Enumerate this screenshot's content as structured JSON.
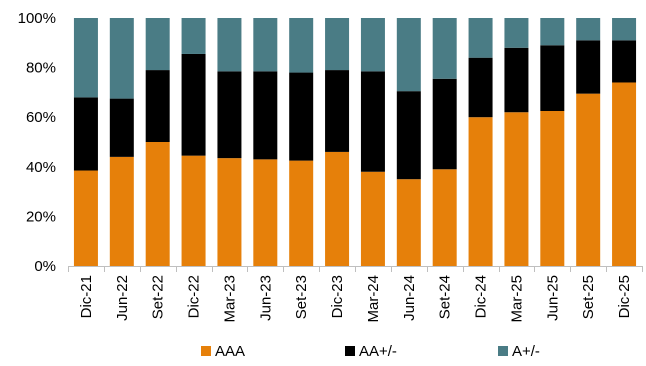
{
  "chart_data": {
    "type": "bar",
    "stacked": true,
    "categories": [
      "Dic-21",
      "Jun-22",
      "Set-22",
      "Dic-22",
      "Mar-23",
      "Jun-23",
      "Set-23",
      "Dic-23",
      "Mar-24",
      "Jun-24",
      "Set-24",
      "Dic-24",
      "Mar-25",
      "Jun-25",
      "Set-25",
      "Dic-25"
    ],
    "series": [
      {
        "name": "AAA",
        "color": "#E6800A",
        "values": [
          38.5,
          44,
          50,
          44.5,
          43.5,
          43,
          42.5,
          46,
          38,
          35,
          39,
          60,
          62,
          62.5,
          69.5,
          74
        ]
      },
      {
        "name": "AA+/-",
        "color": "#000000",
        "values": [
          29.5,
          23.5,
          29,
          41,
          35,
          35.5,
          35.5,
          33,
          40.5,
          35.5,
          36.5,
          24,
          26,
          26.5,
          21.5,
          17
        ]
      },
      {
        "name": "A+/-",
        "color": "#4A7C85",
        "values": [
          32,
          32.5,
          21,
          14.5,
          21.5,
          21.5,
          22,
          21,
          21.5,
          29.5,
          24.5,
          16,
          12,
          11,
          9,
          9
        ]
      }
    ],
    "yticks": [
      "0%",
      "20%",
      "40%",
      "60%",
      "80%",
      "100%"
    ],
    "ylim": [
      0,
      100
    ],
    "legend_position": "bottom",
    "grid": false
  }
}
